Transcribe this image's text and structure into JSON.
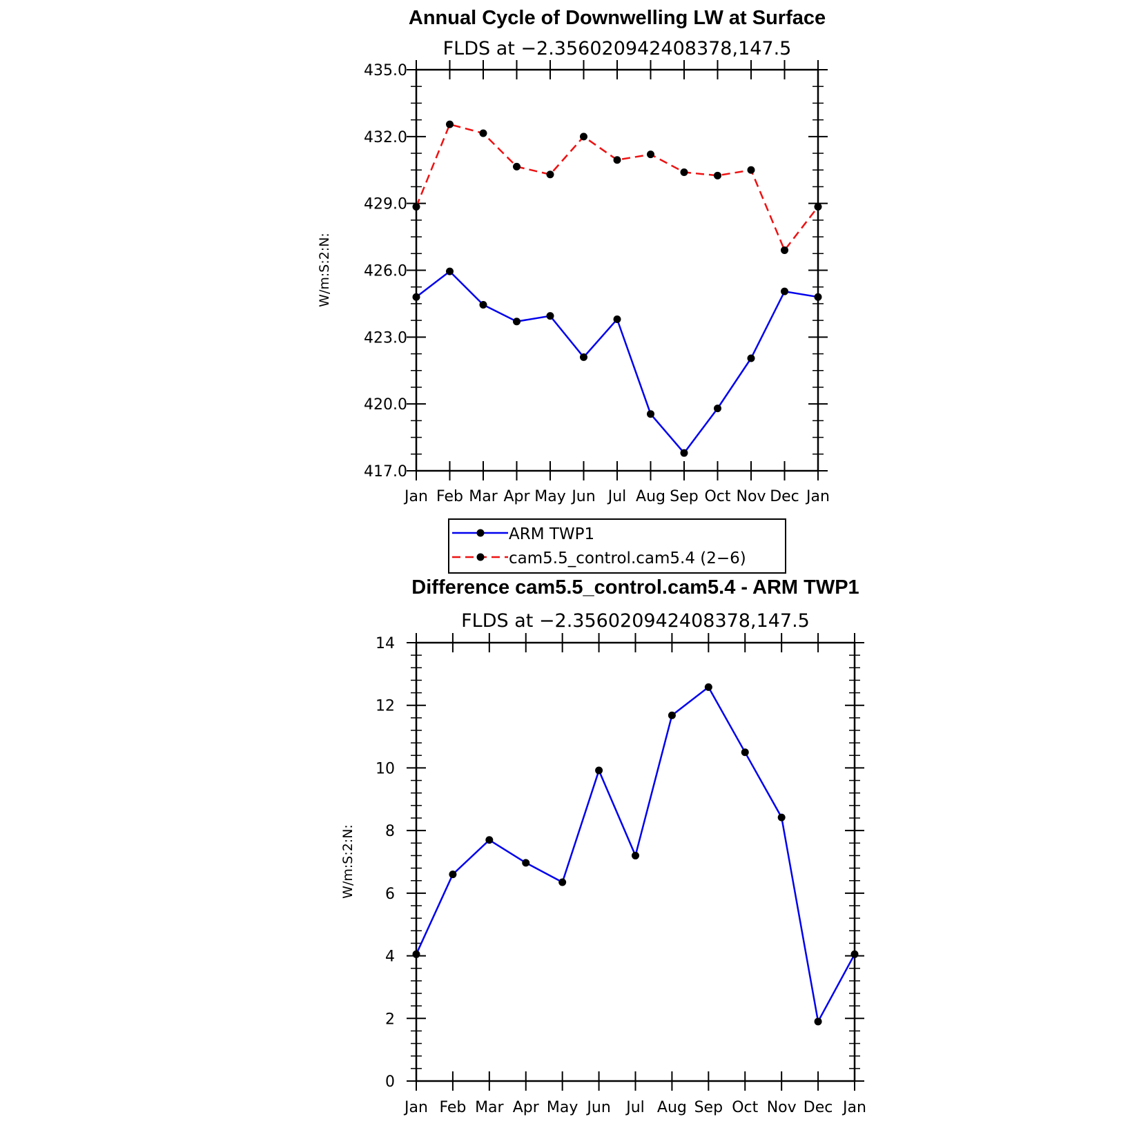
{
  "chart_data": [
    {
      "type": "line",
      "title": "Annual Cycle of Downwelling LW at Surface",
      "subtitle": "FLDS at −2.356020942408378,147.5",
      "xlabel": "",
      "ylabel": "W/m:S:2:N:",
      "categories": [
        "Jan",
        "Feb",
        "Mar",
        "Apr",
        "May",
        "Jun",
        "Jul",
        "Aug",
        "Sep",
        "Oct",
        "Nov",
        "Dec",
        "Jan"
      ],
      "ylim": [
        417.0,
        435.0
      ],
      "yticks": [
        "417.0",
        "420.0",
        "423.0",
        "426.0",
        "429.0",
        "432.0",
        "435.0"
      ],
      "grid": false,
      "legend_position": "below",
      "series": [
        {
          "name": "ARM TWP1",
          "color": "#0000ee",
          "dash": "solid",
          "marker": "filled-circle",
          "values": [
            424.8,
            425.95,
            424.45,
            423.7,
            423.95,
            422.1,
            423.8,
            419.55,
            417.8,
            419.8,
            422.05,
            425.05,
            424.8
          ]
        },
        {
          "name": "cam5.5_control.cam5.4 (2−6)",
          "color": "#ee1111",
          "dash": "dashed",
          "marker": "filled-circle",
          "values": [
            428.85,
            432.55,
            432.15,
            430.65,
            430.3,
            432.0,
            430.95,
            431.2,
            430.4,
            430.25,
            430.5,
            426.9,
            428.85
          ]
        }
      ]
    },
    {
      "type": "line",
      "title": "Difference cam5.5_control.cam5.4 - ARM TWP1",
      "subtitle": "FLDS at −2.356020942408378,147.5",
      "xlabel": "",
      "ylabel": "W/m:S:2:N:",
      "categories": [
        "Jan",
        "Feb",
        "Mar",
        "Apr",
        "May",
        "Jun",
        "Jul",
        "Aug",
        "Sep",
        "Oct",
        "Nov",
        "Dec",
        "Jan"
      ],
      "ylim": [
        0,
        14
      ],
      "yticks": [
        "0",
        "2",
        "4",
        "6",
        "8",
        "10",
        "12",
        "14"
      ],
      "grid": false,
      "series": [
        {
          "color": "#0000ee",
          "dash": "solid",
          "marker": "filled-circle",
          "values": [
            4.05,
            6.6,
            7.7,
            6.97,
            6.35,
            9.92,
            7.2,
            11.68,
            12.58,
            10.5,
            8.42,
            1.9,
            4.05
          ]
        }
      ]
    }
  ]
}
